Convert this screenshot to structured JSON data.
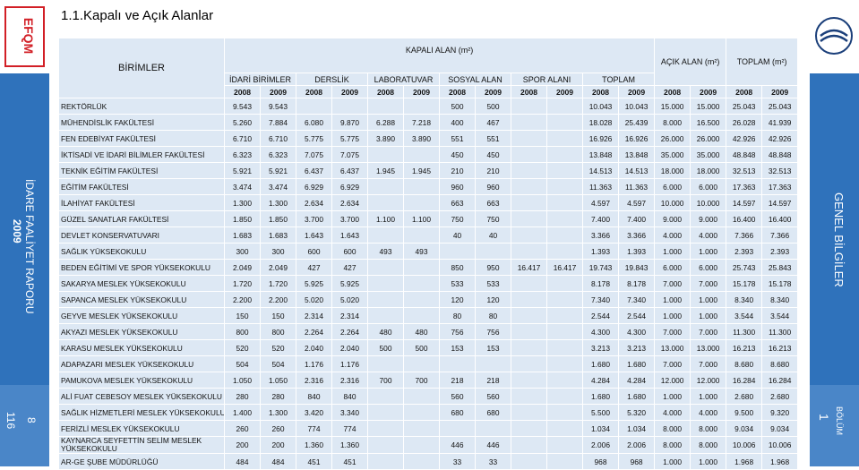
{
  "header": {
    "title": "1.1.Kapalı ve Açık Alanlar"
  },
  "left_sidebar": {
    "logo_text": "EFQM",
    "report": "İDARE FAALİYET RAPORU",
    "year": "2009",
    "page": "116",
    "section_number": "8"
  },
  "right_sidebar": {
    "section": "GENEL BİLGİLER",
    "chapter_label": "BÖLÜM",
    "chapter_number": "1"
  },
  "table": {
    "unit_header": "BİRİMLER",
    "group_headers": [
      "KAPALI ALAN (m²)",
      "AÇIK ALAN (m²)",
      "TOPLAM (m²)"
    ],
    "sub_headers": [
      "İDARİ BİRİMLER",
      "DERSLİK",
      "LABORATUVAR",
      "SOSYAL ALAN",
      "SPOR ALANI",
      "TOPLAM"
    ],
    "years": [
      "2008",
      "2009"
    ],
    "rows": [
      {
        "name": "REKTÖRLÜK",
        "cells": [
          "9.543",
          "9.543",
          null,
          null,
          null,
          null,
          "500",
          "500",
          null,
          null,
          "10.043",
          "10.043",
          "15.000",
          "15.000",
          "25.043",
          "25.043"
        ]
      },
      {
        "name": "MÜHENDİSLİK FAKÜLTESİ",
        "cells": [
          "5.260",
          "7.884",
          "6.080",
          "9.870",
          "6.288",
          "7.218",
          "400",
          "467",
          null,
          null,
          "18.028",
          "25.439",
          "8.000",
          "16.500",
          "26.028",
          "41.939"
        ]
      },
      {
        "name": "FEN EDEBİYAT FAKÜLTESİ",
        "cells": [
          "6.710",
          "6.710",
          "5.775",
          "5.775",
          "3.890",
          "3.890",
          "551",
          "551",
          null,
          null,
          "16.926",
          "16.926",
          "26.000",
          "26.000",
          "42.926",
          "42.926"
        ]
      },
      {
        "name": "İKTİSADİ VE İDARİ BİLİMLER FAKÜLTESİ",
        "cells": [
          "6.323",
          "6.323",
          "7.075",
          "7.075",
          null,
          null,
          "450",
          "450",
          null,
          null,
          "13.848",
          "13.848",
          "35.000",
          "35.000",
          "48.848",
          "48.848"
        ]
      },
      {
        "name": "TEKNİK EĞİTİM FAKÜLTESİ",
        "cells": [
          "5.921",
          "5.921",
          "6.437",
          "6.437",
          "1.945",
          "1.945",
          "210",
          "210",
          null,
          null,
          "14.513",
          "14.513",
          "18.000",
          "18.000",
          "32.513",
          "32.513"
        ]
      },
      {
        "name": "EĞİTİM FAKÜLTESİ",
        "cells": [
          "3.474",
          "3.474",
          "6.929",
          "6.929",
          null,
          null,
          "960",
          "960",
          null,
          null,
          "11.363",
          "11.363",
          "6.000",
          "6.000",
          "17.363",
          "17.363"
        ]
      },
      {
        "name": "İLAHİYAT FAKÜLTESİ",
        "cells": [
          "1.300",
          "1.300",
          "2.634",
          "2.634",
          null,
          null,
          "663",
          "663",
          null,
          null,
          "4.597",
          "4.597",
          "10.000",
          "10.000",
          "14.597",
          "14.597"
        ]
      },
      {
        "name": "GÜZEL SANATLAR FAKÜLTESİ",
        "cells": [
          "1.850",
          "1.850",
          "3.700",
          "3.700",
          "1.100",
          "1.100",
          "750",
          "750",
          null,
          null,
          "7.400",
          "7.400",
          "9.000",
          "9.000",
          "16.400",
          "16.400"
        ]
      },
      {
        "name": "DEVLET KONSERVATUVARI",
        "cells": [
          "1.683",
          "1.683",
          "1.643",
          "1.643",
          null,
          null,
          "40",
          "40",
          null,
          null,
          "3.366",
          "3.366",
          "4.000",
          "4.000",
          "7.366",
          "7.366"
        ]
      },
      {
        "name": "SAĞLIK YÜKSEKOKULU",
        "cells": [
          "300",
          "300",
          "600",
          "600",
          "493",
          "493",
          null,
          null,
          null,
          null,
          "1.393",
          "1.393",
          "1.000",
          "1.000",
          "2.393",
          "2.393"
        ]
      },
      {
        "name": "BEDEN EĞİTİMİ VE SPOR YÜKSEKOKULU",
        "cells": [
          "2.049",
          "2.049",
          "427",
          "427",
          null,
          null,
          "850",
          "950",
          "16.417",
          "16.417",
          "19.743",
          "19.843",
          "6.000",
          "6.000",
          "25.743",
          "25.843"
        ]
      },
      {
        "name": "SAKARYA MESLEK YÜKSEKOKULU",
        "cells": [
          "1.720",
          "1.720",
          "5.925",
          "5.925",
          null,
          null,
          "533",
          "533",
          null,
          null,
          "8.178",
          "8.178",
          "7.000",
          "7.000",
          "15.178",
          "15.178"
        ]
      },
      {
        "name": "SAPANCA MESLEK YÜKSEKOKULU",
        "cells": [
          "2.200",
          "2.200",
          "5.020",
          "5.020",
          null,
          null,
          "120",
          "120",
          null,
          null,
          "7.340",
          "7.340",
          "1.000",
          "1.000",
          "8.340",
          "8.340"
        ]
      },
      {
        "name": "GEYVE MESLEK YÜKSEKOKULU",
        "cells": [
          "150",
          "150",
          "2.314",
          "2.314",
          null,
          null,
          "80",
          "80",
          null,
          null,
          "2.544",
          "2.544",
          "1.000",
          "1.000",
          "3.544",
          "3.544"
        ]
      },
      {
        "name": "AKYAZI MESLEK YÜKSEKOKULU",
        "cells": [
          "800",
          "800",
          "2.264",
          "2.264",
          "480",
          "480",
          "756",
          "756",
          null,
          null,
          "4.300",
          "4.300",
          "7.000",
          "7.000",
          "11.300",
          "11.300"
        ]
      },
      {
        "name": "KARASU MESLEK YÜKSEKOKULU",
        "cells": [
          "520",
          "520",
          "2.040",
          "2.040",
          "500",
          "500",
          "153",
          "153",
          null,
          null,
          "3.213",
          "3.213",
          "13.000",
          "13.000",
          "16.213",
          "16.213"
        ]
      },
      {
        "name": "ADAPAZARI MESLEK YÜKSEKOKULU",
        "cells": [
          "504",
          "504",
          "1.176",
          "1.176",
          null,
          null,
          null,
          null,
          null,
          null,
          "1.680",
          "1.680",
          "7.000",
          "7.000",
          "8.680",
          "8.680"
        ]
      },
      {
        "name": "PAMUKOVA MESLEK YÜKSEKOKULU",
        "cells": [
          "1.050",
          "1.050",
          "2.316",
          "2.316",
          "700",
          "700",
          "218",
          "218",
          null,
          null,
          "4.284",
          "4.284",
          "12.000",
          "12.000",
          "16.284",
          "16.284"
        ]
      },
      {
        "name": "ALİ FUAT CEBESOY MESLEK YÜKSEKOKULU",
        "cells": [
          "280",
          "280",
          "840",
          "840",
          null,
          null,
          "560",
          "560",
          null,
          null,
          "1.680",
          "1.680",
          "1.000",
          "1.000",
          "2.680",
          "2.680"
        ]
      },
      {
        "name": "SAĞLIK HİZMETLERİ MESLEK YÜKSEKOKULU",
        "cells": [
          "1.400",
          "1.300",
          "3.420",
          "3.340",
          null,
          null,
          "680",
          "680",
          null,
          null,
          "5.500",
          "5.320",
          "4.000",
          "4.000",
          "9.500",
          "9.320"
        ]
      },
      {
        "name": "FERİZLİ MESLEK YÜKSEKOKULU",
        "cells": [
          "260",
          "260",
          "774",
          "774",
          null,
          null,
          null,
          null,
          null,
          null,
          "1.034",
          "1.034",
          "8.000",
          "8.000",
          "9.034",
          "9.034"
        ]
      },
      {
        "name": "KAYNARCA SEYFETTİN SELİM MESLEK YÜKSEKOKULU",
        "cells": [
          "200",
          "200",
          "1.360",
          "1.360",
          null,
          null,
          "446",
          "446",
          null,
          null,
          "2.006",
          "2.006",
          "8.000",
          "8.000",
          "10.006",
          "10.006"
        ]
      },
      {
        "name": "AR-GE ŞUBE MÜDÜRLÜĞÜ",
        "cells": [
          "484",
          "484",
          "451",
          "451",
          null,
          null,
          "33",
          "33",
          null,
          null,
          "968",
          "968",
          "1.000",
          "1.000",
          "1.968",
          "1.968"
        ]
      }
    ]
  }
}
